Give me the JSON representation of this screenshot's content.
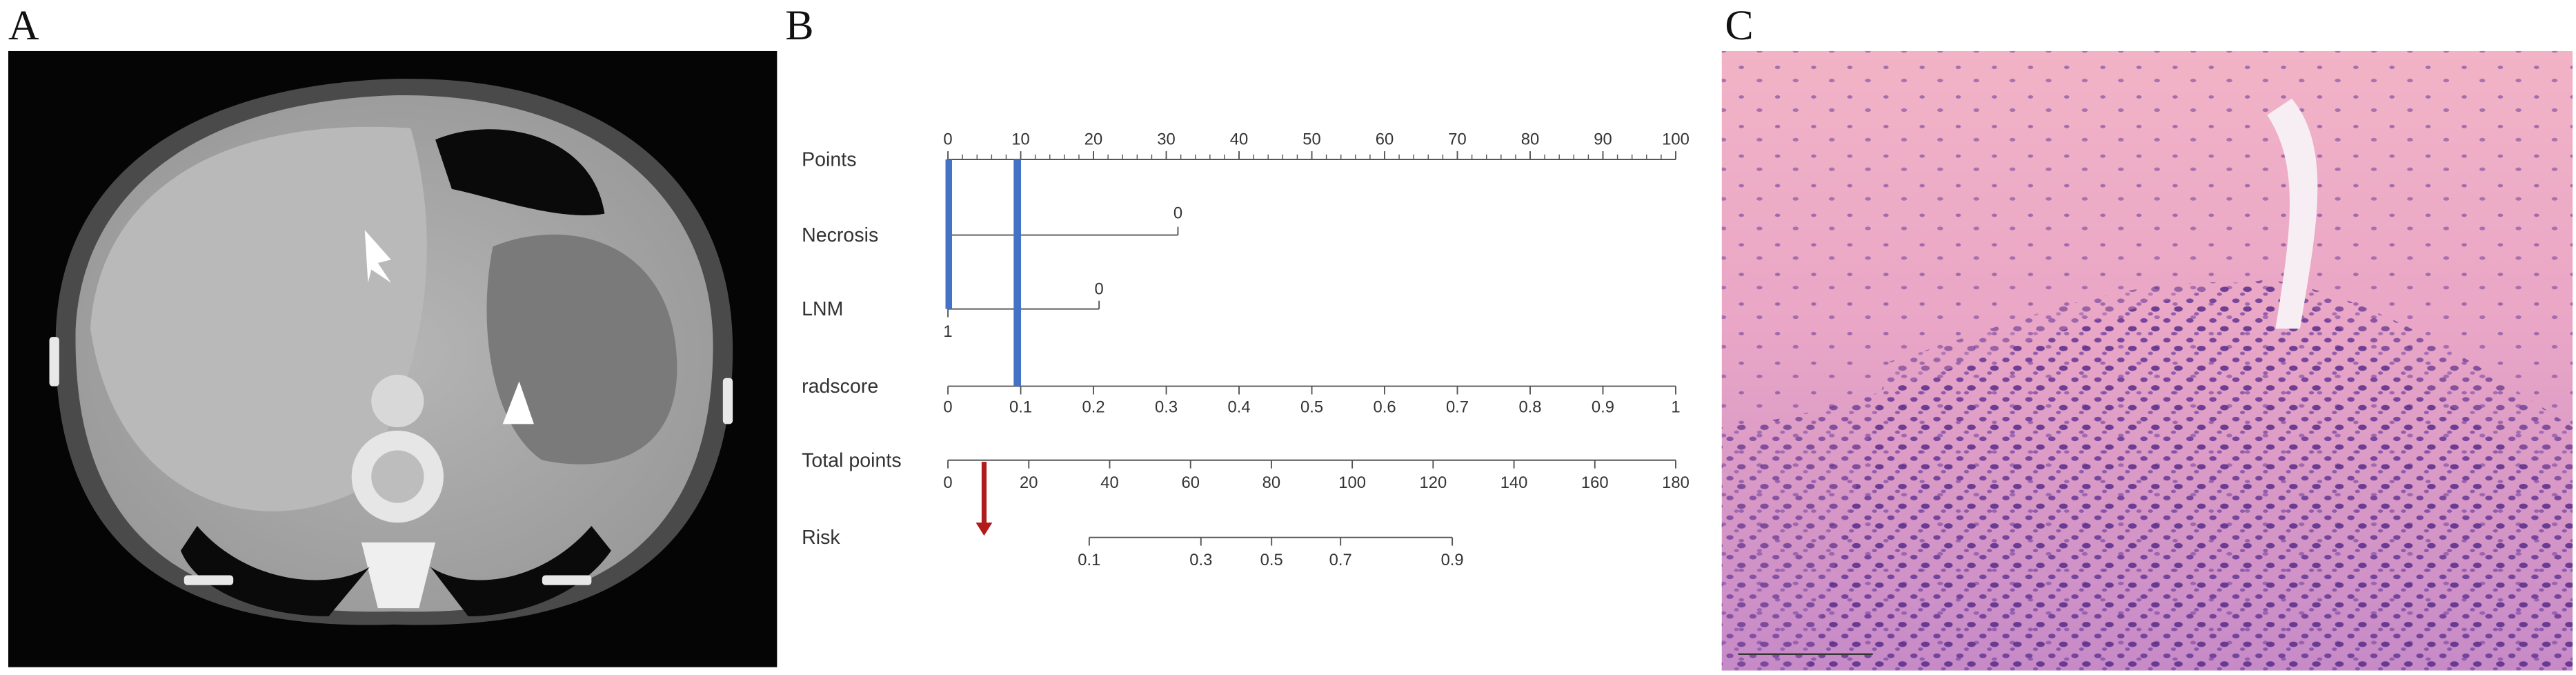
{
  "panels": {
    "a": {
      "label": "A"
    },
    "b": {
      "label": "B"
    },
    "c": {
      "label": "C"
    }
  },
  "nomogram": {
    "rows": [
      {
        "name": "Points",
        "ticks": [
          0,
          10,
          20,
          30,
          40,
          50,
          60,
          70,
          80,
          90,
          100
        ]
      },
      {
        "name": "Necrosis",
        "ticks": [
          0
        ]
      },
      {
        "name": "LNM",
        "ticks": [
          0,
          1
        ]
      },
      {
        "name": "radscore",
        "ticks": [
          0,
          0.1,
          0.2,
          0.3,
          0.4,
          0.5,
          0.6,
          0.7,
          0.8,
          0.9,
          1
        ]
      },
      {
        "name": "Total points",
        "ticks": [
          0,
          20,
          40,
          60,
          80,
          100,
          120,
          140,
          160,
          180
        ]
      },
      {
        "name": "Risk",
        "ticks": [
          0.1,
          0.3,
          0.5,
          0.7,
          0.9
        ]
      }
    ]
  }
}
